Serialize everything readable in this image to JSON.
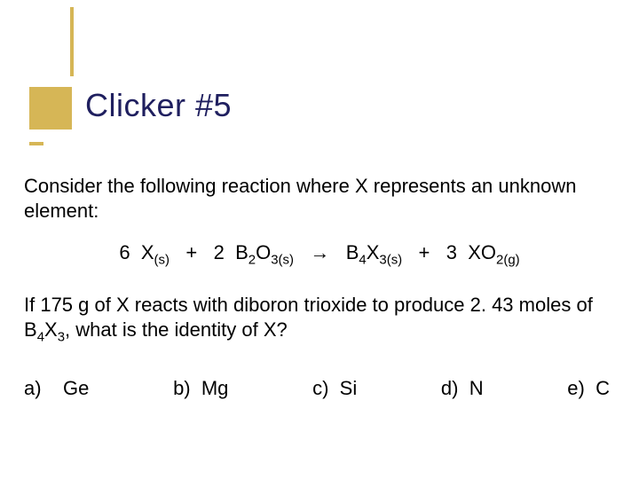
{
  "title": {
    "text": "Clicker #5",
    "fontsize": 36,
    "color": "#1f1f5f"
  },
  "decoration": {
    "color": "#d6b656"
  },
  "body_fontsize": 22,
  "question_part1": "Consider the following reaction where X represents an unknown element:",
  "equation": {
    "lhs1_coef": "6",
    "lhs1_sym": "X",
    "lhs1_state": "(s)",
    "plus1": "+",
    "lhs2_coef": "2",
    "lhs2_sym": "B",
    "lhs2_sub1": "2",
    "lhs2_sym2": "O",
    "lhs2_sub2": "3",
    "lhs2_state": "(s)",
    "arrow": "→",
    "rhs1_sym": "B",
    "rhs1_sub1": "4",
    "rhs1_sym2": "X",
    "rhs1_sub2": "3",
    "rhs1_state": "(s)",
    "plus2": "+",
    "rhs2_coef": "3",
    "rhs2_sym": "XO",
    "rhs2_sub": "2",
    "rhs2_state": "(g)"
  },
  "question_part2_a": "If 175 g of X reacts with diboron trioxide to produce 2. 43 moles of B",
  "question_part2_sub1": "4",
  "question_part2_mid": "X",
  "question_part2_sub2": "3",
  "question_part2_b": ", what is the identity of X?",
  "options": {
    "a": {
      "label": "a)",
      "value": "Ge"
    },
    "b": {
      "label": "b)",
      "value": "Mg"
    },
    "c": {
      "label": "c)",
      "value": "Si"
    },
    "d": {
      "label": "d)",
      "value": "N"
    },
    "e": {
      "label": "e)",
      "value": "C"
    }
  }
}
